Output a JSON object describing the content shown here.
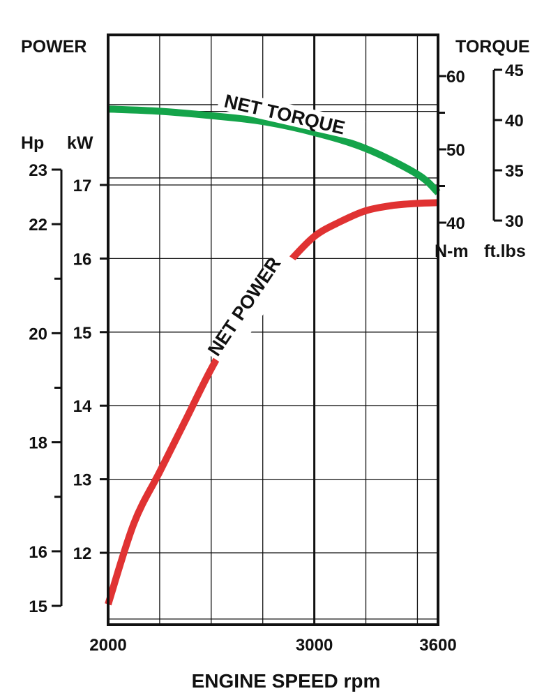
{
  "chart_data": {
    "type": "line",
    "title": "",
    "left_axis": {
      "title": "POWER",
      "hp": {
        "label": "Hp",
        "ticks": [
          "23",
          "22",
          "20",
          "18",
          "16",
          "15"
        ],
        "tick_values": [
          23,
          22,
          20,
          18,
          16,
          15
        ],
        "minor_tick_values": [
          21,
          19,
          17
        ]
      },
      "kw": {
        "label": "kW",
        "ticks": [
          "17",
          "16",
          "15",
          "14",
          "13",
          "12"
        ],
        "tick_values": [
          17,
          16,
          15,
          14,
          13,
          12
        ],
        "ylim": [
          11,
          18.5
        ]
      }
    },
    "right_axis": {
      "title": "TORQUE",
      "nm": {
        "label": "N-m",
        "ticks": [
          "60",
          "50",
          "40"
        ],
        "tick_values": [
          60,
          50,
          40
        ],
        "minor_tick_values": [
          55,
          45
        ]
      },
      "ftlbs": {
        "label": "ft.lbs",
        "ticks": [
          "45",
          "40",
          "35",
          "30"
        ],
        "tick_values": [
          45,
          40,
          35,
          30
        ]
      }
    },
    "x_axis": {
      "label": "ENGINE SPEED rpm",
      "ticks": [
        "2000",
        "3000",
        "3600"
      ],
      "tick_values": [
        2000,
        3000,
        3600
      ],
      "xlim": [
        2000,
        3600
      ],
      "gridlines": [
        2250,
        2500,
        2750,
        3000,
        3250,
        3500
      ]
    },
    "grid": true,
    "series": [
      {
        "name": "NET TORQUE",
        "axis": "N-m",
        "color": "#14a44a",
        "x": [
          2000,
          2250,
          2500,
          2750,
          3000,
          3250,
          3500,
          3600
        ],
        "y": [
          55.5,
          55.2,
          54.6,
          53.8,
          52.3,
          50.1,
          46.6,
          44.1
        ]
      },
      {
        "name": "NET POWER",
        "axis": "kW",
        "color": "#e03232",
        "x": [
          2000,
          2125,
          2250,
          2375,
          2500,
          2625,
          2750,
          2875,
          3000,
          3125,
          3250,
          3375,
          3500,
          3600
        ],
        "y": [
          11.3,
          12.4,
          13.1,
          13.8,
          14.5,
          15.1,
          15.6,
          15.95,
          16.3,
          16.5,
          16.65,
          16.72,
          16.75,
          16.76
        ]
      }
    ]
  }
}
